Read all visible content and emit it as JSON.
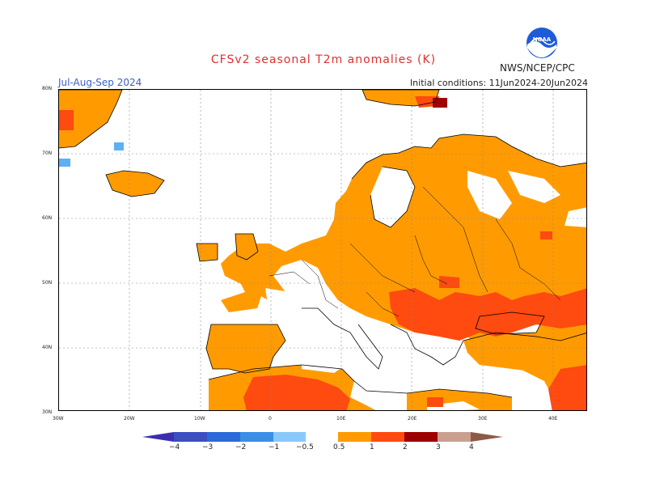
{
  "header": {
    "title": "CFSv2 seasonal T2m anomalies (K)",
    "period": "Jul-Aug-Sep 2024",
    "initial_conditions": "Initial conditions: 11Jun2024-20Jun2024",
    "org": "NWS/NCEP/CPC",
    "logo_text": "NOAA"
  },
  "axes": {
    "lat_labels": [
      "80N",
      "70N",
      "60N",
      "50N",
      "40N",
      "30N"
    ],
    "lon_labels": [
      "30W",
      "20W",
      "10W",
      "0",
      "10E",
      "20E",
      "30E",
      "40E"
    ]
  },
  "colorbar": {
    "labels": [
      "−4",
      "−3",
      "−2",
      "−1",
      "−0.5",
      "0.5",
      "1",
      "2",
      "3",
      "4"
    ],
    "colors": {
      "neg4": "#3b2fb0",
      "neg3": "#2c59c8",
      "neg2": "#3a8ee8",
      "neg1": "#5eb0f5",
      "neg05": "#8ac8fa",
      "neutral": "#ffffff",
      "pos05": "#ff9b00",
      "pos1": "#ff4a10",
      "pos2": "#c8000a",
      "pos3": "#9e0000",
      "pos4": "#c9a090",
      "pos5": "#8e5a48"
    }
  },
  "colors": {
    "warm": "#ff9b00",
    "warmer": "#ff4a10",
    "hot": "#c8000a",
    "cool": "#5eb0f5",
    "title": "#e03030",
    "period": "#3a5fd0"
  }
}
